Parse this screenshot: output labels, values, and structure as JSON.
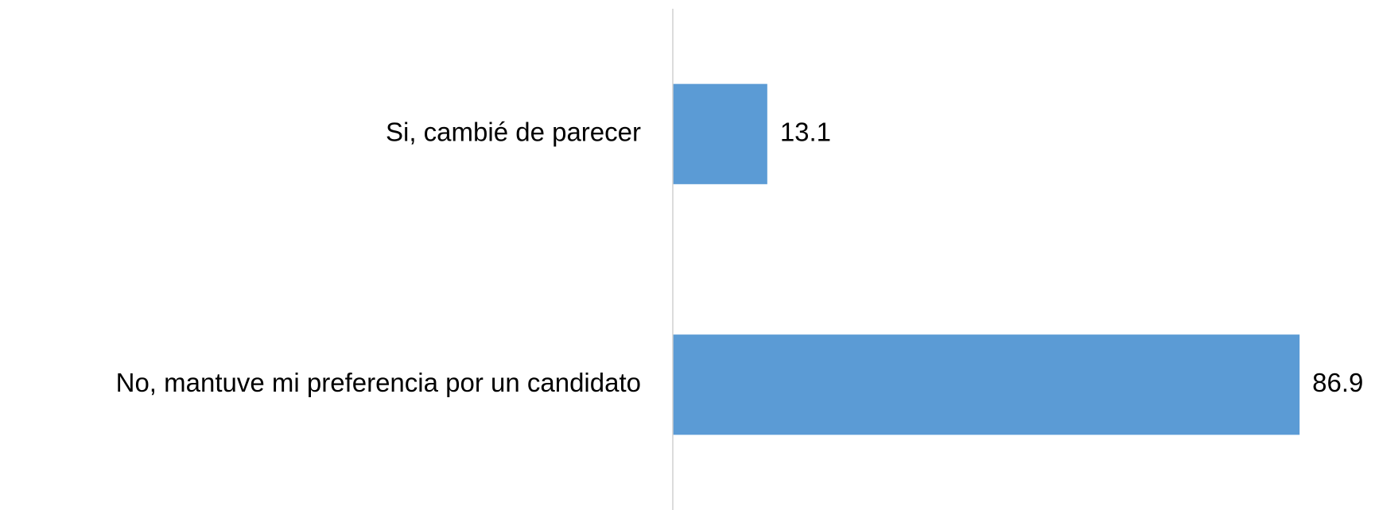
{
  "chart_data": {
    "type": "hbar",
    "categories": [
      "Si, cambié de parecer",
      "No, mantuve mi preferencia por un candidato"
    ],
    "values": [
      13.1,
      86.9
    ],
    "color": "#5b9bd5",
    "xlim": [
      0,
      100
    ]
  }
}
